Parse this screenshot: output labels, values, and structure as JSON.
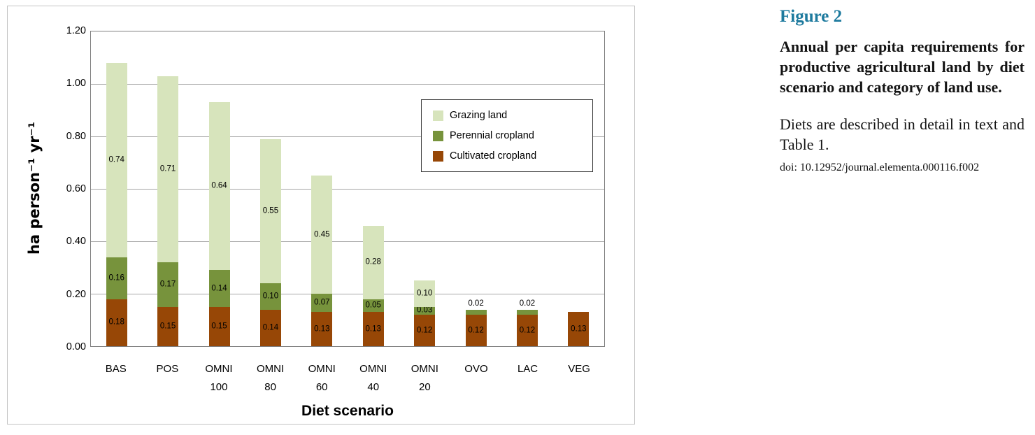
{
  "caption": {
    "figure_label": "Figure 2",
    "accent_color": "#1d7a9e",
    "title": "Annual per capita requirements for productive agricultural land by diet scenario and category of land use.",
    "body": "Diets are described in detail in text and Table 1.",
    "doi": "doi: 10.12952/journal.elementa.000116.f002"
  },
  "chart_data": {
    "type": "bar",
    "stacked": true,
    "title": "",
    "xlabel": "Diet scenario",
    "ylabel": "ha person⁻¹ yr⁻¹",
    "ylim": [
      0,
      1.2
    ],
    "yticks": [
      "0.00",
      "0.20",
      "0.40",
      "0.60",
      "0.80",
      "1.00",
      "1.20"
    ],
    "grid": true,
    "legend_position": "upper-right",
    "categories": [
      [
        "BAS"
      ],
      [
        "POS"
      ],
      [
        "OMNI",
        "100"
      ],
      [
        "OMNI",
        "80"
      ],
      [
        "OMNI",
        "60"
      ],
      [
        "OMNI",
        "40"
      ],
      [
        "OMNI",
        "20"
      ],
      [
        "OVO"
      ],
      [
        "LAC"
      ],
      [
        "VEG"
      ]
    ],
    "series": [
      {
        "name": "Grazing land",
        "color": "#d7e4bc",
        "values": [
          0.74,
          0.71,
          0.64,
          0.55,
          0.45,
          0.28,
          0.1,
          0,
          0,
          0
        ]
      },
      {
        "name": "Perennial cropland",
        "color": "#77933c",
        "values": [
          0.16,
          0.17,
          0.14,
          0.1,
          0.07,
          0.05,
          0.03,
          0.02,
          0.02,
          0
        ]
      },
      {
        "name": "Cultivated cropland",
        "color": "#974706",
        "values": [
          0.18,
          0.15,
          0.15,
          0.14,
          0.13,
          0.13,
          0.12,
          0.12,
          0.12,
          0.13
        ]
      }
    ]
  }
}
